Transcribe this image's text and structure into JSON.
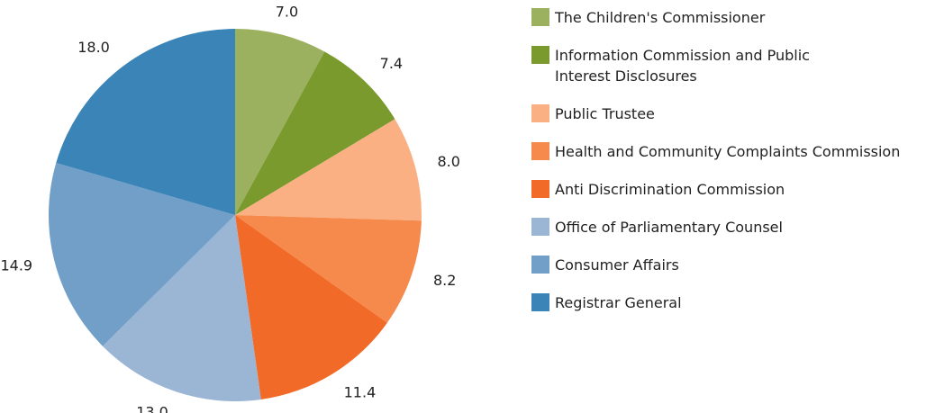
{
  "chart_data": {
    "type": "pie",
    "categories": [
      "The Children's Commissioner",
      "Information Commission and Public Interest Disclosures",
      "Public Trustee",
      "Health and Community Complaints Commission",
      "Anti Discrimination Commission",
      "Office of Parliamentary Counsel",
      "Consumer Affairs",
      "Registrar General"
    ],
    "values": [
      7,
      7.4,
      8,
      8.2,
      11.4,
      13,
      14.9,
      18
    ],
    "value_labels": [
      "7.0",
      "7.4",
      "8.0",
      "8.2",
      "11.4",
      "13.0",
      "14.9",
      "18.0"
    ],
    "colors": [
      "#9bb160",
      "#7a9a2e",
      "#fbb084",
      "#f68a4c",
      "#f26a28",
      "#9bb5d5",
      "#729fc8",
      "#3b84b8"
    ],
    "legend": "right"
  }
}
